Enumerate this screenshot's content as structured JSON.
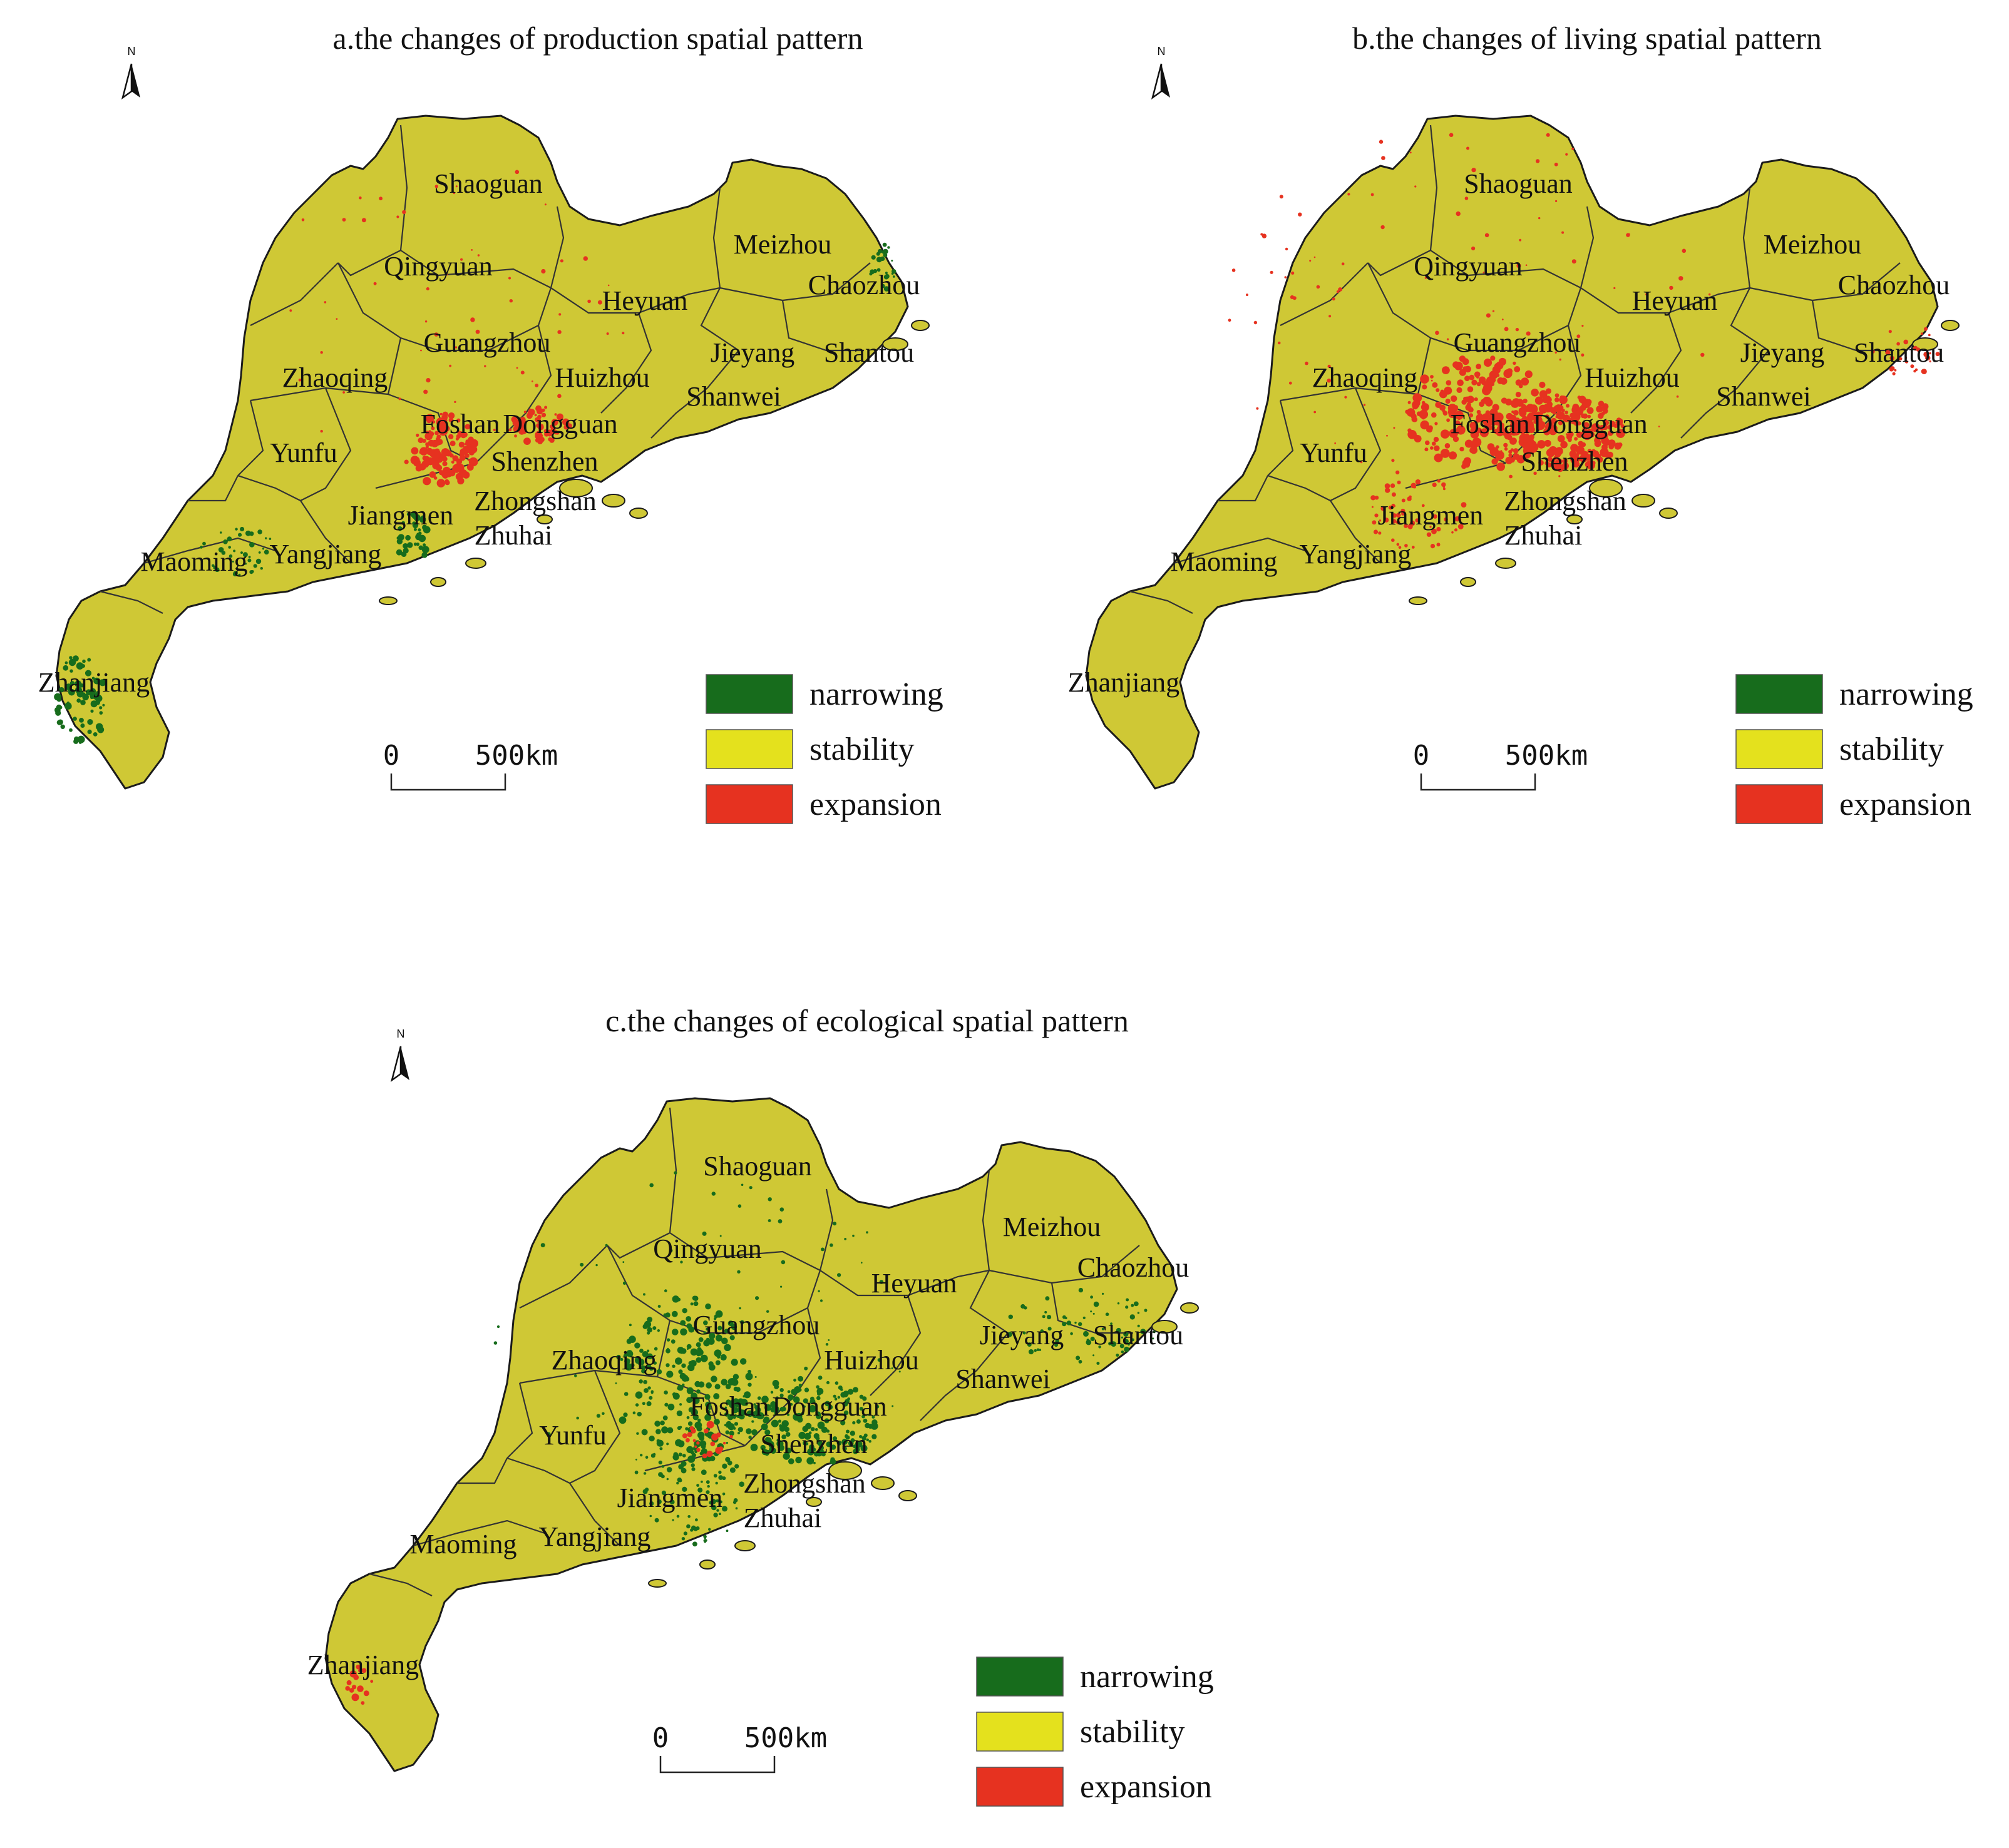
{
  "colors": {
    "narrowing": "#176c1c",
    "stability": "#e4e11d",
    "expansion": "#e63220",
    "province_fill": "#cfc835"
  },
  "legend": {
    "items": [
      {
        "key": "narrowing",
        "label": "narrowing",
        "color": "#176c1c"
      },
      {
        "key": "stability",
        "label": "stability",
        "color": "#e4e11d"
      },
      {
        "key": "expansion",
        "label": "expansion",
        "color": "#e63220"
      }
    ]
  },
  "scale_bar": {
    "start_label": "0",
    "end_label": "500km"
  },
  "north_arrow": {
    "label": "N",
    "icon": "north-arrow-icon"
  },
  "panels": [
    {
      "id": "a",
      "title": "a.the changes of production spatial pattern",
      "hotspots": {
        "expansion": "pearl-river-delta",
        "narrowing": "western-coast"
      }
    },
    {
      "id": "b",
      "title": "b.the changes of living spatial pattern",
      "hotspots": {
        "expansion": "pearl-river-delta-wide",
        "narrowing": "none"
      }
    },
    {
      "id": "c",
      "title": "c.the changes of ecological spatial pattern",
      "hotspots": {
        "expansion": "sparse",
        "narrowing": "pearl-river-delta"
      }
    }
  ],
  "cities": [
    "Shaoguan",
    "Qingyuan",
    "Meizhou",
    "Chaozhou",
    "Heyuan",
    "Guangzhou",
    "Jieyang",
    "Shantou",
    "Zhaoqing",
    "Huizhou",
    "Shanwei",
    "Foshan",
    "Dongguan",
    "Yunfu",
    "Shenzhen",
    "Jiangmen",
    "Zhongshan",
    "Zhuhai",
    "Maoming",
    "Yangjiang",
    "Zhanjiang"
  ]
}
